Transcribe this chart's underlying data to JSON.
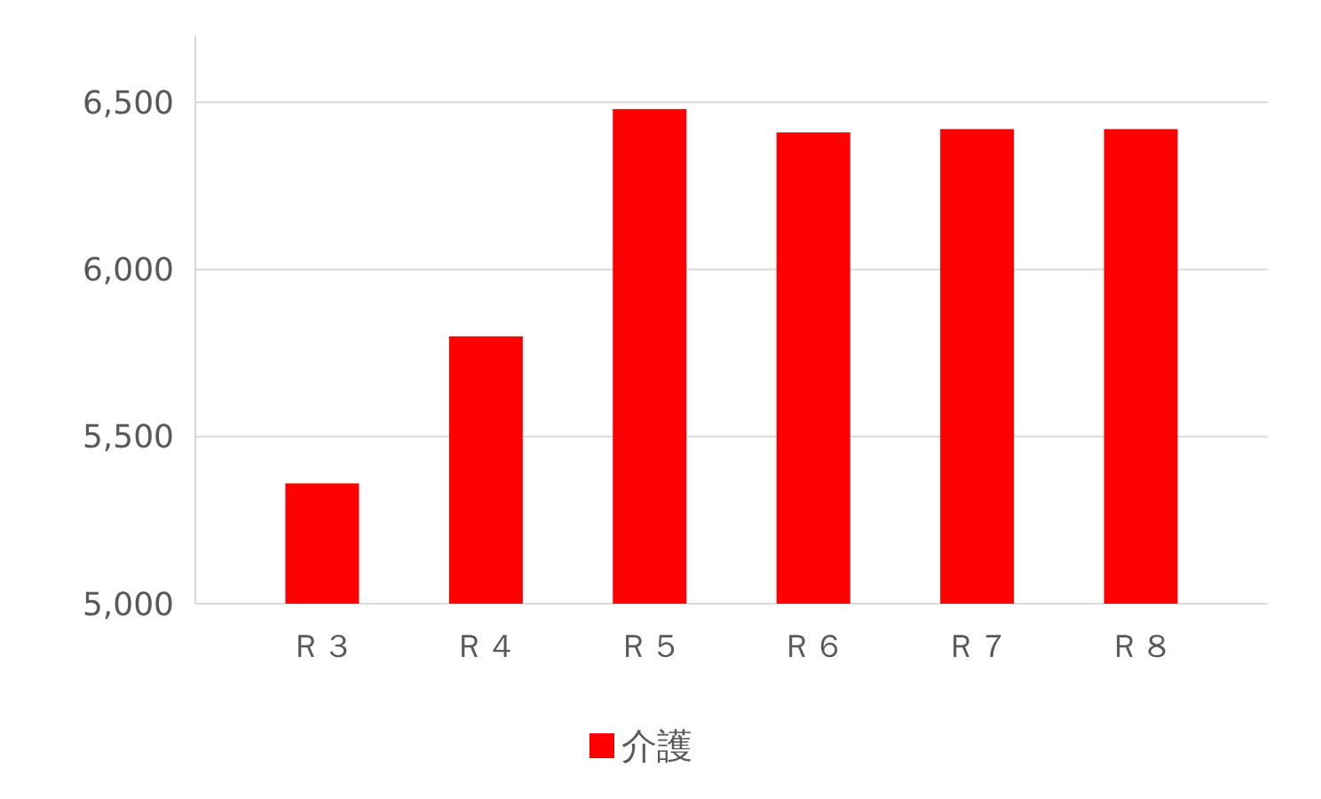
{
  "chart_data": {
    "type": "bar",
    "categories": [
      "Ｒ３",
      "Ｒ４",
      "Ｒ５",
      "Ｒ６",
      "Ｒ７",
      "Ｒ８"
    ],
    "series": [
      {
        "name": "介護",
        "color": "#ff0000",
        "values": [
          5360,
          5800,
          6480,
          6410,
          6420,
          6420
        ]
      }
    ],
    "ylim": [
      5000,
      6700
    ],
    "yticks": [
      {
        "value": 5000,
        "label": "5,000"
      },
      {
        "value": 5500,
        "label": "5,500"
      },
      {
        "value": 6000,
        "label": "6,000"
      },
      {
        "value": 6500,
        "label": "6,500"
      }
    ],
    "grid": "y",
    "legend": "bottom"
  }
}
